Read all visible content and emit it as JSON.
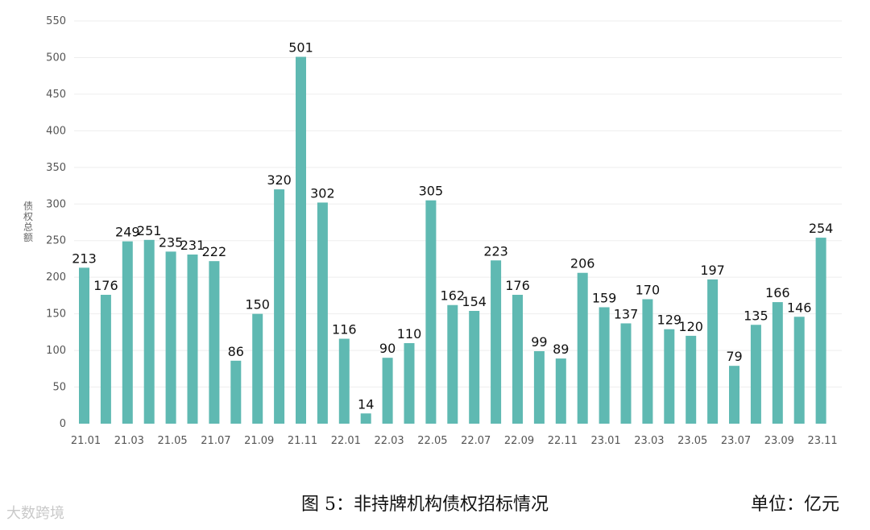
{
  "chart_data": {
    "type": "bar",
    "ylabel": "债权总额",
    "ylim": [
      0,
      550
    ],
    "yticks": [
      0,
      50,
      100,
      150,
      200,
      250,
      300,
      350,
      400,
      450,
      500,
      550
    ],
    "grid": true,
    "bar_color": "#5fb9b2",
    "categories": [
      "21.01",
      "21.02",
      "21.03",
      "21.04",
      "21.05",
      "21.06",
      "21.07",
      "21.08",
      "21.09",
      "21.10",
      "21.11",
      "21.12",
      "22.01",
      "22.02",
      "22.03",
      "22.04",
      "22.05",
      "22.06",
      "22.07",
      "22.08",
      "22.09",
      "22.10",
      "22.11",
      "22.12",
      "23.01",
      "23.02",
      "23.03",
      "23.04",
      "23.05",
      "23.06",
      "23.07",
      "23.08",
      "23.09",
      "23.10",
      "23.11"
    ],
    "xtick_labels": [
      "21.01",
      "",
      "21.03",
      "",
      "21.05",
      "",
      "21.07",
      "",
      "21.09",
      "",
      "21.11",
      "",
      "22.01",
      "",
      "22.03",
      "",
      "22.05",
      "",
      "22.07",
      "",
      "22.09",
      "",
      "22.11",
      "",
      "23.01",
      "",
      "23.03",
      "",
      "23.05",
      "",
      "23.07",
      "",
      "23.09",
      "",
      "23.11"
    ],
    "values": [
      213,
      176,
      249,
      251,
      235,
      231,
      222,
      86,
      150,
      320,
      501,
      302,
      116,
      14,
      90,
      110,
      305,
      162,
      154,
      223,
      176,
      99,
      89,
      206,
      159,
      137,
      170,
      129,
      120,
      197,
      79,
      135,
      166,
      146,
      254
    ]
  },
  "caption": "图 5：非持牌机构债权招标情况",
  "unit": "单位：亿元",
  "watermark": "大数跨境"
}
